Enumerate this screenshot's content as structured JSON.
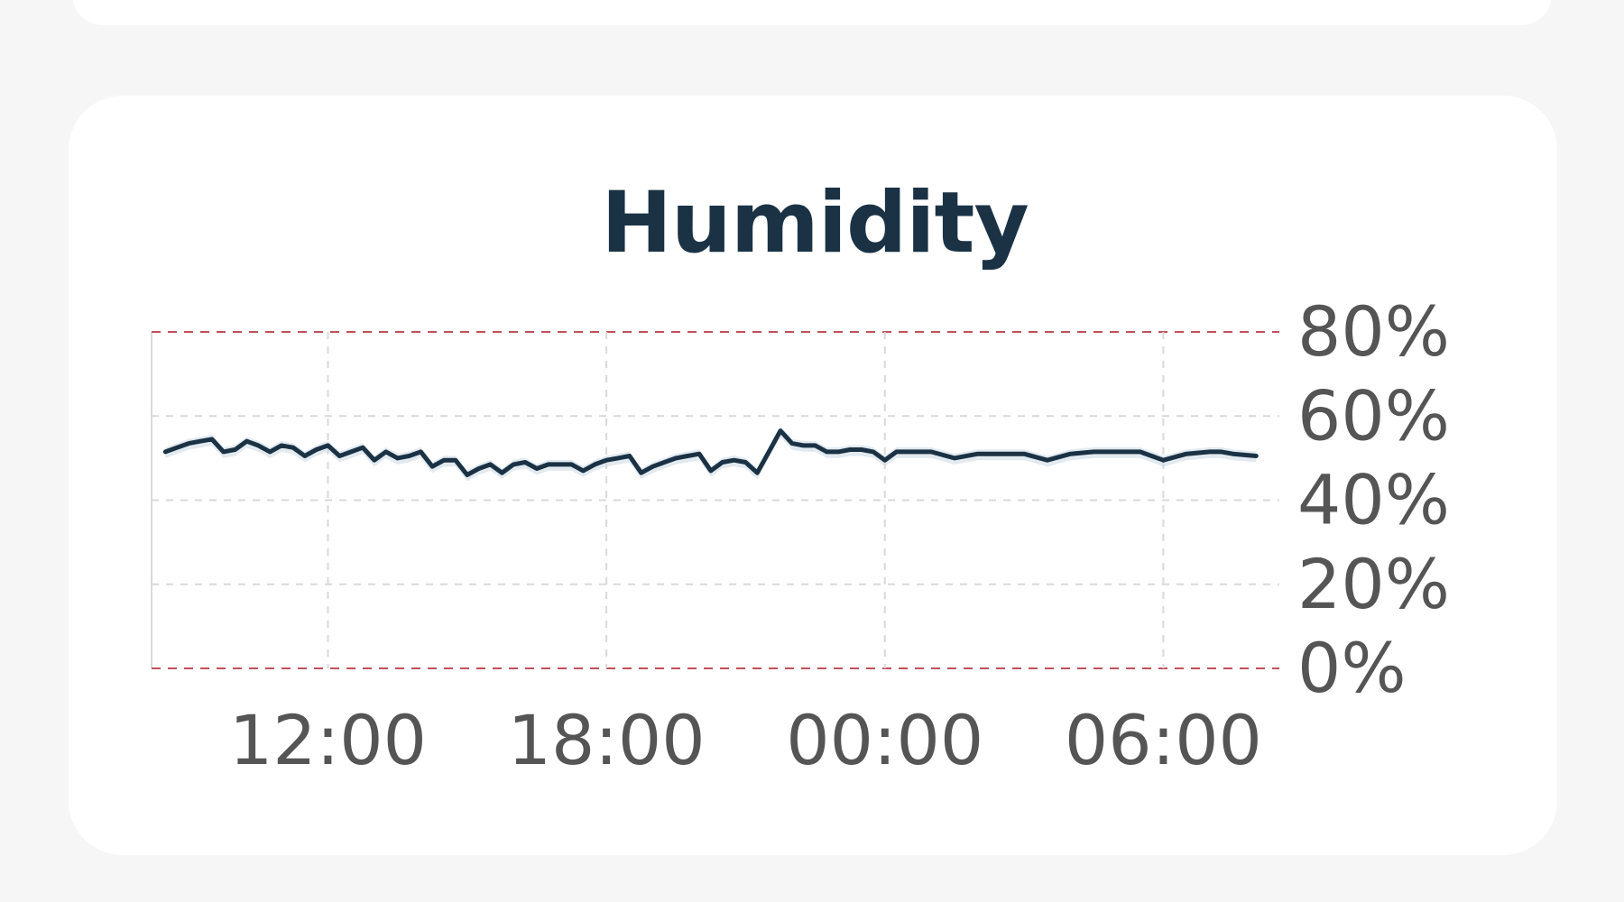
{
  "chart_data": {
    "type": "line",
    "title": "Humidity",
    "xlabel": "",
    "ylabel": "",
    "x_ticks": [
      "12:00",
      "18:00",
      "00:00",
      "06:00"
    ],
    "y_ticks": [
      "80%",
      "60%",
      "40%",
      "20%",
      "0%"
    ],
    "ylim": [
      0,
      80
    ],
    "xlim": [
      8.2,
      32.5
    ],
    "y_axis_position": "right",
    "grid": true,
    "threshold_lines": [
      0,
      80
    ],
    "colors": {
      "line": "#1b3245",
      "band": "#cbd8e3",
      "grid": "#d9d9d9",
      "threshold": "#c0505a",
      "tick_text": "#555555",
      "title": "#1b3245"
    },
    "series": [
      {
        "x": [
          8.5,
          8.75,
          9.0,
          9.25,
          9.5,
          9.75,
          10.0,
          10.25,
          10.5,
          10.75,
          11.0,
          11.25,
          11.5,
          11.75,
          12.0,
          12.25,
          12.5,
          12.75,
          13.0,
          13.25,
          13.5,
          13.75,
          14.0,
          14.25,
          14.5,
          14.75,
          15.0,
          15.25,
          15.5,
          15.75,
          16.0,
          16.25,
          16.5,
          16.75,
          17.0,
          17.25,
          17.5,
          17.75,
          18.0,
          18.25,
          18.5,
          18.75,
          19.0,
          19.25,
          19.5,
          19.75,
          20.0,
          20.25,
          20.5,
          20.75,
          21.0,
          21.25,
          21.5,
          21.75,
          22.0,
          22.25,
          22.5,
          22.75,
          23.0,
          23.25,
          23.5,
          23.75,
          24.0,
          24.25,
          24.5,
          24.75,
          25.0,
          25.5,
          26.0,
          26.5,
          27.0,
          27.5,
          28.0,
          28.5,
          29.0,
          29.5,
          30.0,
          30.5,
          31.0,
          31.25,
          31.5,
          32.0
        ],
        "values": [
          51.5,
          52.5,
          53.5,
          54.0,
          54.5,
          51.5,
          52.0,
          54.0,
          53.0,
          51.5,
          53.0,
          52.5,
          50.5,
          52.0,
          53.0,
          50.5,
          51.5,
          52.5,
          49.5,
          51.5,
          50.0,
          50.5,
          51.5,
          48.0,
          49.5,
          49.5,
          46.0,
          47.5,
          48.5,
          46.5,
          48.5,
          49.0,
          47.5,
          48.5,
          48.5,
          48.5,
          47.0,
          48.5,
          49.5,
          50.0,
          50.5,
          46.5,
          48.0,
          49.0,
          50.0,
          50.5,
          51.0,
          47.0,
          49.0,
          49.5,
          49.0,
          46.5,
          51.5,
          56.5,
          53.5,
          53.0,
          53.0,
          51.5,
          51.5,
          52.0,
          52.0,
          51.5,
          49.5,
          51.5,
          51.5,
          51.5,
          51.5,
          50.0,
          51.0,
          51.0,
          51.0,
          49.5,
          51.0,
          51.5,
          51.5,
          51.5,
          49.5,
          51.0,
          51.5,
          51.5,
          51.0,
          50.5
        ]
      }
    ]
  }
}
